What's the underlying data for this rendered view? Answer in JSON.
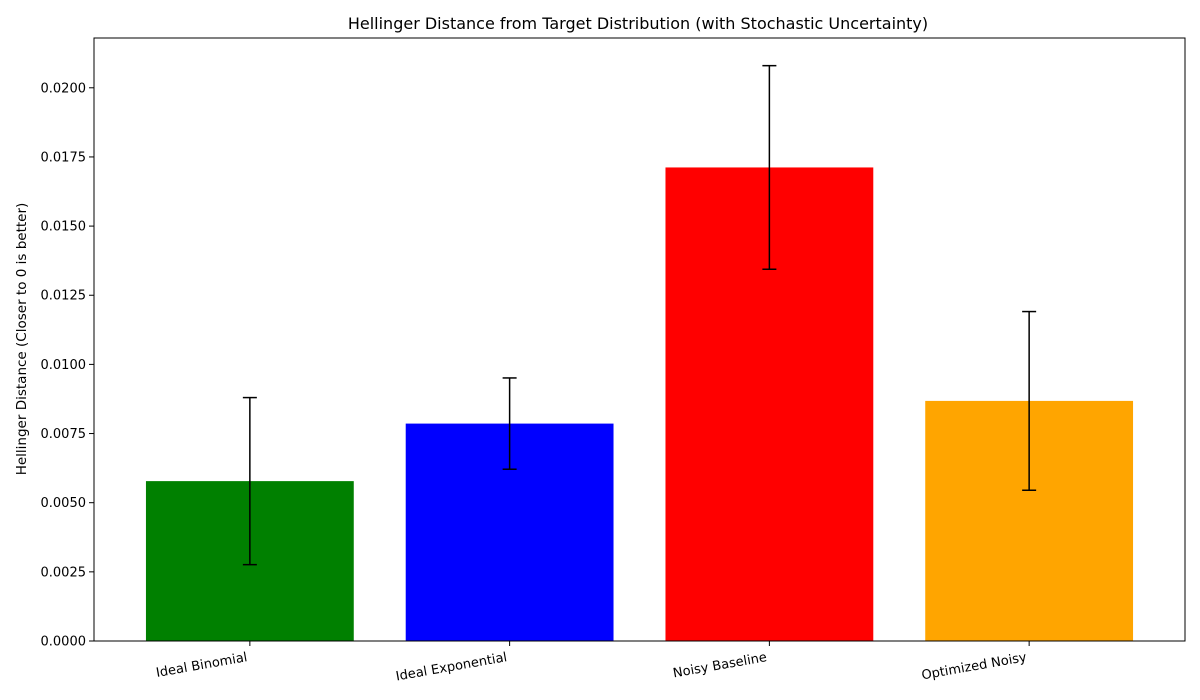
{
  "chart_data": {
    "type": "bar",
    "title": "Hellinger Distance from Target Distribution (with Stochastic Uncertainty)",
    "xlabel": "",
    "ylabel": "Hellinger Distance (Closer to 0 is better)",
    "ylim": [
      0,
      0.0218
    ],
    "yticks": [
      "0.0000",
      "0.0025",
      "0.0050",
      "0.0075",
      "0.0100",
      "0.0125",
      "0.0150",
      "0.0175",
      "0.0200"
    ],
    "categories": [
      "Ideal Binomial",
      "Ideal Exponential",
      "Noisy Baseline",
      "Optimized Noisy"
    ],
    "values": [
      0.00578,
      0.00786,
      0.01712,
      0.00868
    ],
    "errors": [
      0.00302,
      0.00165,
      0.00368,
      0.00323
    ],
    "colors": [
      "#008000",
      "#0000ff",
      "#ff0000",
      "#ffa500"
    ],
    "grid": false,
    "legend": "none"
  }
}
